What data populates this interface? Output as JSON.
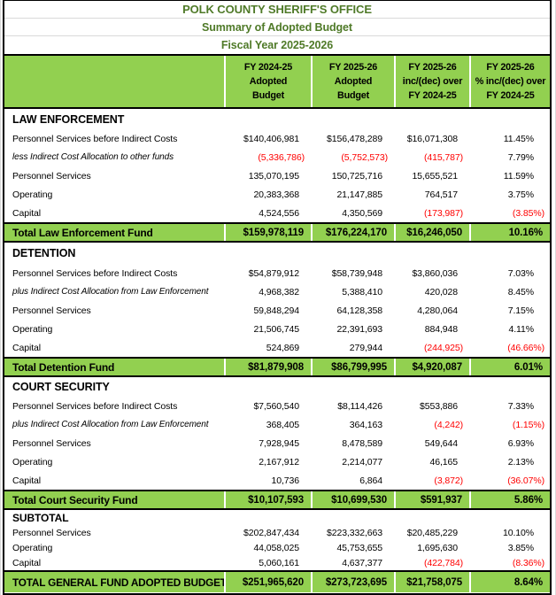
{
  "colors": {
    "green": "#92D050",
    "title_green": "#4F7A28",
    "red": "#FF0000",
    "border": "#000000"
  },
  "header": {
    "title": "POLK COUNTY SHERIFF'S OFFICE",
    "subtitle": "Summary of  Adopted Budget",
    "fiscal_year": "Fiscal Year 2025-2026"
  },
  "col_headers": [
    {
      "lines": [
        "FY 2024-25",
        "Adopted",
        "Budget"
      ]
    },
    {
      "lines": [
        "FY 2025-26",
        "Adopted",
        "Budget"
      ]
    },
    {
      "lines": [
        "FY 2025-26",
        "inc/(dec) over",
        "FY 2024-25"
      ]
    },
    {
      "lines": [
        "FY 2025-26",
        "% inc/(dec) over",
        "FY 2024-25"
      ]
    }
  ],
  "sections": [
    {
      "name": "LAW ENFORCEMENT",
      "rows": [
        {
          "label": "Personnel Services before Indirect Costs",
          "c1": "$140,406,981",
          "c2": "$156,478,289",
          "c3": "$16,071,308",
          "c4": "11.45%"
        },
        {
          "label": "less Indirect Cost Allocation to other funds",
          "c1": "(5,336,786)",
          "c2": "(5,752,573)",
          "c3": "(415,787)",
          "c4": "7.79%"
        },
        {
          "label": "Personnel Services",
          "c1": "135,070,195",
          "c2": "150,725,716",
          "c3": "15,655,521",
          "c4": "11.59%"
        },
        {
          "label": "Operating",
          "c1": "20,383,368",
          "c2": "21,147,885",
          "c3": "764,517",
          "c4": "3.75%"
        },
        {
          "label": "Capital",
          "c1": "4,524,556",
          "c2": "4,350,569",
          "c3": "(173,987)",
          "c4": "(3.85%)"
        }
      ],
      "total": {
        "label": "Total Law Enforcement Fund",
        "c1": "$159,978,119",
        "c2": "$176,224,170",
        "c3": "$16,246,050",
        "c4": "10.16%"
      }
    },
    {
      "name": "DETENTION",
      "rows": [
        {
          "label": "Personnel Services before Indirect Costs",
          "c1": "$54,879,912",
          "c2": "$58,739,948",
          "c3": "$3,860,036",
          "c4": "7.03%"
        },
        {
          "label": "plus Indirect Cost Allocation from Law Enforcement",
          "c1": "4,968,382",
          "c2": "5,388,410",
          "c3": "420,028",
          "c4": "8.45%"
        },
        {
          "label": "Personnel Services",
          "c1": "59,848,294",
          "c2": "64,128,358",
          "c3": "4,280,064",
          "c4": "7.15%"
        },
        {
          "label": "Operating",
          "c1": "21,506,745",
          "c2": "22,391,693",
          "c3": "884,948",
          "c4": "4.11%"
        },
        {
          "label": "Capital",
          "c1": "524,869",
          "c2": "279,944",
          "c3": "(244,925)",
          "c4": "(46.66%)"
        }
      ],
      "total": {
        "label": "Total Detention Fund",
        "c1": "$81,879,908",
        "c2": "$86,799,995",
        "c3": "$4,920,087",
        "c4": "6.01%"
      }
    },
    {
      "name": "COURT SECURITY",
      "rows": [
        {
          "label": "Personnel Services before Indirect Costs",
          "c1": "$7,560,540",
          "c2": "$8,114,426",
          "c3": "$553,886",
          "c4": "7.33%"
        },
        {
          "label": "plus Indirect Cost Allocation from Law Enforcement",
          "c1": "368,405",
          "c2": "364,163",
          "c3": "(4,242)",
          "c4": "(1.15%)"
        },
        {
          "label": "Personnel Services",
          "c1": "7,928,945",
          "c2": "8,478,589",
          "c3": "549,644",
          "c4": "6.93%"
        },
        {
          "label": "Operating",
          "c1": "2,167,912",
          "c2": "2,214,077",
          "c3": "46,165",
          "c4": "2.13%"
        },
        {
          "label": "Capital",
          "c1": "10,736",
          "c2": "6,864",
          "c3": "(3,872)",
          "c4": "(36.07%)"
        }
      ],
      "total": {
        "label": "Total Court Security Fund",
        "c1": "$10,107,593",
        "c2": "$10,699,530",
        "c3": "$591,937",
        "c4": "5.86%"
      }
    },
    {
      "name": "SUBTOTAL",
      "rows": [
        {
          "label": "Personnel Services",
          "c1": "$202,847,434",
          "c2": "$223,332,663",
          "c3": "$20,485,229",
          "c4": "10.10%"
        },
        {
          "label": "Operating",
          "c1": "44,058,025",
          "c2": "45,753,655",
          "c3": "1,695,630",
          "c4": "3.85%"
        },
        {
          "label": "Capital",
          "c1": "5,060,161",
          "c2": "4,637,377",
          "c3": "(422,784)",
          "c4": "(8.36%)"
        }
      ],
      "total": {
        "label": "TOTAL GENERAL FUND ADOPTED BUDGET",
        "c1": "$251,965,620",
        "c2": "$273,723,695",
        "c3": "$21,758,075",
        "c4": "8.64%"
      }
    }
  ]
}
